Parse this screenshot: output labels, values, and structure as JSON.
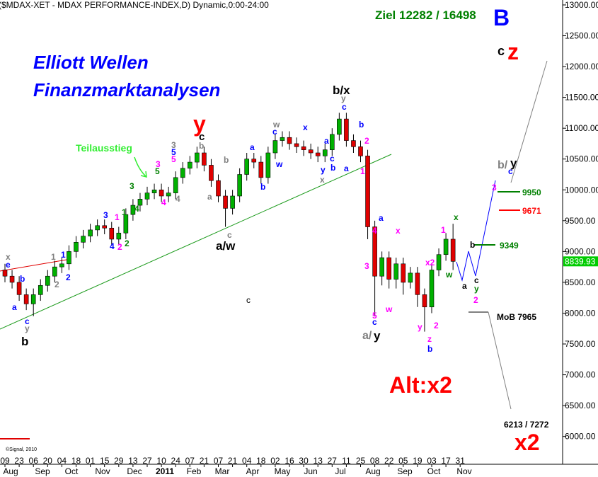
{
  "chart_data": {
    "type": "candlestick",
    "ylim": [
      5560,
      13080
    ],
    "yticks": [
      {
        "value": 13000,
        "label": "13000.00"
      },
      {
        "value": 12500,
        "label": "12500.00"
      },
      {
        "value": 12000,
        "label": "12000.00"
      },
      {
        "value": 11500,
        "label": "11500.00"
      },
      {
        "value": 11000,
        "label": "11000.00"
      },
      {
        "value": 10500,
        "label": "10500.00"
      },
      {
        "value": 10000,
        "label": "10000.00"
      },
      {
        "value": 9500,
        "label": "9500.00"
      },
      {
        "value": 9000,
        "label": "9000.00"
      },
      {
        "value": 8500,
        "label": "8500.00"
      },
      {
        "value": 8000,
        "label": "8000.00"
      },
      {
        "value": 7500,
        "label": "7500.00"
      },
      {
        "value": 7000,
        "label": "7000.00"
      },
      {
        "value": 6500,
        "label": "6500.00"
      },
      {
        "value": 6000,
        "label": "6000.00"
      }
    ],
    "last_price": 8839.93,
    "last_price_color": "#00cc00",
    "up_color": "#00b000",
    "down_color": "#e00000",
    "open": [
      8700,
      8600,
      8500,
      8300,
      8150,
      8300,
      8450,
      8600,
      8750,
      8800,
      9000,
      9150,
      9250,
      9350,
      9420,
      9380,
      9200,
      9300,
      9600,
      9750,
      9850,
      9950,
      10000,
      9900,
      9950,
      10200,
      10350,
      10450,
      10600,
      10400,
      10150,
      9900,
      9700,
      9900,
      10250,
      10500,
      10450,
      10200,
      10600,
      10800,
      10850,
      10750,
      10700,
      10650,
      10600,
      10550,
      10650,
      10900,
      11150,
      10800,
      10700,
      10550,
      9400,
      8600,
      8900,
      8550,
      8800,
      8500,
      8650,
      8300,
      8100,
      8700,
      8950,
      9200
    ],
    "high": [
      8800,
      8700,
      8600,
      8400,
      8400,
      8550,
      8700,
      8850,
      8900,
      9100,
      9250,
      9350,
      9450,
      9520,
      9520,
      9480,
      9400,
      9700,
      9850,
      9950,
      10050,
      10100,
      10100,
      10050,
      10300,
      10450,
      10550,
      10700,
      10700,
      10500,
      10250,
      10000,
      10000,
      10350,
      10600,
      10600,
      10550,
      10700,
      10900,
      10950,
      10950,
      10850,
      10800,
      10750,
      10700,
      10750,
      11000,
      11250,
      11250,
      10900,
      10800,
      10650,
      9500,
      9000,
      9000,
      8900,
      8900,
      8750,
      8750,
      8400,
      8800,
      9050,
      9300,
      9450
    ],
    "low": [
      8500,
      8400,
      8200,
      8050,
      7950,
      8200,
      8350,
      8500,
      8650,
      8700,
      8900,
      9050,
      9150,
      9250,
      9280,
      9100,
      9100,
      9200,
      9500,
      9650,
      9750,
      9850,
      9800,
      9800,
      9850,
      10100,
      10250,
      10350,
      10300,
      10050,
      9800,
      9400,
      9600,
      9800,
      10150,
      10350,
      10100,
      10100,
      10500,
      10700,
      10650,
      10600,
      10550,
      10500,
      10450,
      10450,
      10550,
      10800,
      10700,
      10600,
      10450,
      9200,
      7950,
      8450,
      8400,
      8400,
      8300,
      8400,
      8100,
      7700,
      8000,
      8600,
      8850,
      8700
    ],
    "close": [
      8600,
      8500,
      8300,
      8150,
      8300,
      8450,
      8600,
      8750,
      8800,
      9000,
      9150,
      9250,
      9350,
      9420,
      9380,
      9200,
      9300,
      9600,
      9750,
      9850,
      9950,
      10000,
      9900,
      9950,
      10200,
      10350,
      10450,
      10600,
      10400,
      10150,
      9900,
      9700,
      9900,
      10250,
      10500,
      10450,
      10200,
      10600,
      10800,
      10850,
      10750,
      10700,
      10650,
      10600,
      10550,
      10650,
      10900,
      11150,
      10800,
      10700,
      10550,
      9400,
      8600,
      8900,
      8550,
      8800,
      8500,
      8650,
      8300,
      8100,
      8700,
      8950,
      9200,
      8840
    ],
    "x_day_labels": [
      "09",
      "23",
      "06",
      "20",
      "04",
      "18",
      "01",
      "15",
      "29",
      "13",
      "27",
      "10",
      "24",
      "07",
      "21",
      "07",
      "21",
      "04",
      "18",
      "02",
      "16",
      "30",
      "13",
      "27",
      "11",
      "25",
      "08",
      "22",
      "05",
      "19",
      "03",
      "17",
      "31"
    ],
    "x_month_labels": [
      "Aug",
      "Sep",
      "Oct",
      "Nov",
      "Dec",
      "2011",
      "Feb",
      "Mar",
      "Apr",
      "May",
      "Jun",
      "Jul",
      "Aug",
      "Sep",
      "Oct",
      "Nov"
    ],
    "annotations": [
      {
        "text": "($MDAX-XET - MDAX PERFORMANCE-INDEX,D) Dynamic,0:00-24:00",
        "color": "#000000"
      },
      {
        "text": "Ziel 12282 / 16498",
        "color": "#008000"
      },
      {
        "text": "B",
        "color": "#0000ff"
      },
      {
        "text": "Elliott Wellen",
        "color": "#0000ff"
      },
      {
        "text": "Finanzmarktanalysen",
        "color": "#0000ff"
      },
      {
        "text": "Teilausstieg",
        "color": "#33ee33"
      },
      {
        "text": "c",
        "color": "#000000"
      },
      {
        "text": "z",
        "color": "#ff0000"
      },
      {
        "text": "y",
        "color": "#ff0000"
      },
      {
        "text": "b/x",
        "color": "#000000"
      },
      {
        "text": "a/w",
        "color": "#000000"
      },
      {
        "text": "a/",
        "color": "#808080"
      },
      {
        "text": "y",
        "color": "#000000"
      },
      {
        "text": "b/",
        "color": "#808080"
      },
      {
        "text": "y",
        "color": "#000000"
      },
      {
        "text": "b",
        "color": "#000000"
      },
      {
        "text": "c",
        "color": "#000000"
      },
      {
        "text": "Alt:x2",
        "color": "#ff0000"
      },
      {
        "text": "x2",
        "color": "#ff0000"
      },
      {
        "text": "6213 / 7272",
        "color": "#000000"
      },
      {
        "text": "MoB 7965",
        "color": "#000000"
      },
      {
        "text": "9950",
        "color": "#008000"
      },
      {
        "text": "9671",
        "color": "#ff0000"
      },
      {
        "text": "9349",
        "color": "#008000"
      },
      {
        "text": "©Signal, 2010",
        "color": "#000000"
      },
      {
        "text": "x",
        "color": "#808080"
      },
      {
        "text": "e",
        "color": "#0000ff"
      },
      {
        "text": "b",
        "color": "#0000ff"
      },
      {
        "text": "a",
        "color": "#0000ff"
      },
      {
        "text": "c",
        "color": "#0000ff"
      },
      {
        "text": "y",
        "color": "#808080"
      },
      {
        "text": "1",
        "color": "#808080"
      },
      {
        "text": "1",
        "color": "#0000ff"
      },
      {
        "text": "2",
        "color": "#808080"
      },
      {
        "text": "2",
        "color": "#0000ff"
      },
      {
        "text": "3",
        "color": "#0000ff"
      },
      {
        "text": "4",
        "color": "#0000ff"
      },
      {
        "text": "2",
        "color": "#ff00ff"
      },
      {
        "text": "1",
        "color": "#ff00ff"
      },
      {
        "text": "1",
        "color": "#008000"
      },
      {
        "text": "2",
        "color": "#008000"
      },
      {
        "text": "3",
        "color": "#008000"
      },
      {
        "text": "4",
        "color": "#008000"
      },
      {
        "text": "5",
        "color": "#008000"
      },
      {
        "text": "3",
        "color": "#ff00ff"
      },
      {
        "text": "4",
        "color": "#ff00ff"
      },
      {
        "text": "3",
        "color": "#808080"
      },
      {
        "text": "5",
        "color": "#0000ff"
      },
      {
        "text": "5",
        "color": "#ff00ff"
      },
      {
        "text": "4",
        "color": "#808080"
      },
      {
        "text": "c",
        "color": "#000000"
      },
      {
        "text": "b",
        "color": "#808080"
      },
      {
        "text": "a",
        "color": "#808080"
      },
      {
        "text": "b",
        "color": "#808080"
      },
      {
        "text": "c",
        "color": "#808080"
      },
      {
        "text": "a",
        "color": "#0000ff"
      },
      {
        "text": "b",
        "color": "#0000ff"
      },
      {
        "text": "w",
        "color": "#808080"
      },
      {
        "text": "c",
        "color": "#0000ff"
      },
      {
        "text": "w",
        "color": "#0000ff"
      },
      {
        "text": "x",
        "color": "#0000ff"
      },
      {
        "text": "a",
        "color": "#0000ff"
      },
      {
        "text": "y",
        "color": "#0000ff"
      },
      {
        "text": "x",
        "color": "#808080"
      },
      {
        "text": "c",
        "color": "#0000ff"
      },
      {
        "text": "b",
        "color": "#0000ff"
      },
      {
        "text": "y",
        "color": "#808080"
      },
      {
        "text": "c",
        "color": "#0000ff"
      },
      {
        "text": "b",
        "color": "#0000ff"
      },
      {
        "text": "2",
        "color": "#ff00ff"
      },
      {
        "text": "a",
        "color": "#0000ff"
      },
      {
        "text": "1",
        "color": "#ff00ff"
      },
      {
        "text": "4",
        "color": "#ff00ff"
      },
      {
        "text": "a",
        "color": "#0000ff"
      },
      {
        "text": "3",
        "color": "#ff00ff"
      },
      {
        "text": "5",
        "color": "#ff00ff"
      },
      {
        "text": "c",
        "color": "#0000ff"
      },
      {
        "text": "w",
        "color": "#ff00ff"
      },
      {
        "text": "x",
        "color": "#ff00ff"
      },
      {
        "text": "x2",
        "color": "#ff00ff"
      },
      {
        "text": "1",
        "color": "#ff00ff"
      },
      {
        "text": "x",
        "color": "#008000"
      },
      {
        "text": "w",
        "color": "#008000"
      },
      {
        "text": "y",
        "color": "#ff00ff"
      },
      {
        "text": "2",
        "color": "#ff00ff"
      },
      {
        "text": "z",
        "color": "#ff00ff"
      },
      {
        "text": "b",
        "color": "#0000ff"
      },
      {
        "text": "a",
        "color": "#000000"
      },
      {
        "text": "b",
        "color": "#000000"
      },
      {
        "text": "c",
        "color": "#000000"
      },
      {
        "text": "y",
        "color": "#008000"
      },
      {
        "text": "2",
        "color": "#ff00ff"
      },
      {
        "text": "3",
        "color": "#ff00ff"
      },
      {
        "text": "c",
        "color": "#0000ff"
      }
    ]
  }
}
